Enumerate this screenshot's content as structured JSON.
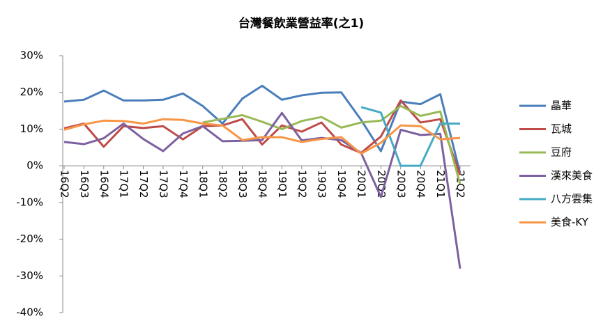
{
  "chart_data": {
    "type": "line",
    "title": "台灣餐飲業營益率(之1)",
    "categories": [
      "16Q2",
      "16Q3",
      "16Q4",
      "17Q1",
      "17Q2",
      "17Q3",
      "17Q4",
      "18Q1",
      "18Q2",
      "18Q3",
      "18Q4",
      "19Q1",
      "19Q2",
      "19Q3",
      "19Q4",
      "20Q1",
      "20Q2",
      "20Q3",
      "20Q4",
      "21Q1",
      "21Q2"
    ],
    "ylim": [
      -40,
      30
    ],
    "yticks": [
      {
        "value": -40,
        "label": "-40%"
      },
      {
        "value": -30,
        "label": "-30%"
      },
      {
        "value": -20,
        "label": "-20%"
      },
      {
        "value": -10,
        "label": "-10%"
      },
      {
        "value": 0,
        "label": "0%"
      },
      {
        "value": 10,
        "label": "10%"
      },
      {
        "value": 20,
        "label": "20%"
      },
      {
        "value": 30,
        "label": "30%"
      }
    ],
    "legend": "right",
    "series": [
      {
        "name": "晶華",
        "color": "#4a7ebb",
        "values": [
          17.5,
          18,
          20.5,
          17.8,
          17.8,
          18,
          19.7,
          16.3,
          11.5,
          18.3,
          21.8,
          18,
          19.2,
          19.9,
          20,
          12.5,
          4,
          17.5,
          16.8,
          19.5,
          -2
        ]
      },
      {
        "name": "瓦城",
        "color": "#be4b48",
        "values": [
          10.2,
          11.5,
          5.2,
          10.8,
          10.3,
          10.8,
          7.2,
          10.8,
          11,
          12.7,
          5.8,
          11,
          9.3,
          11.8,
          5.8,
          3.5,
          8,
          17.8,
          11.8,
          12.7,
          -2.5
        ]
      },
      {
        "name": "豆府",
        "color": "#98b954",
        "values": [
          null,
          null,
          null,
          null,
          null,
          null,
          null,
          11.8,
          12.8,
          13.8,
          12,
          10,
          12.2,
          13.3,
          10.4,
          11.8,
          12.3,
          16.3,
          13.6,
          14.8,
          -5
        ]
      },
      {
        "name": "漢來美食",
        "color": "#7d60a0",
        "values": [
          6.5,
          5.9,
          7.5,
          11.5,
          7.3,
          4,
          8.8,
          10.8,
          6.7,
          6.8,
          7,
          14.4,
          6.9,
          7.6,
          7,
          3.5,
          -8.5,
          9.8,
          8.4,
          8.7,
          -28
        ]
      },
      {
        "name": "八方雲集",
        "color": "#46aac5",
        "values": [
          null,
          null,
          null,
          null,
          null,
          null,
          null,
          null,
          null,
          null,
          null,
          null,
          null,
          null,
          null,
          16,
          14.5,
          0,
          0,
          11.5,
          11.5
        ]
      },
      {
        "name": "美食-KY",
        "color": "#f79646",
        "values": [
          9.8,
          11.3,
          12.3,
          12.2,
          11.5,
          12.7,
          12.5,
          11.5,
          11,
          7,
          7.8,
          7.8,
          6.5,
          7.3,
          7.8,
          3.3,
          6.3,
          11,
          10.8,
          7.2,
          7.6
        ]
      }
    ]
  }
}
